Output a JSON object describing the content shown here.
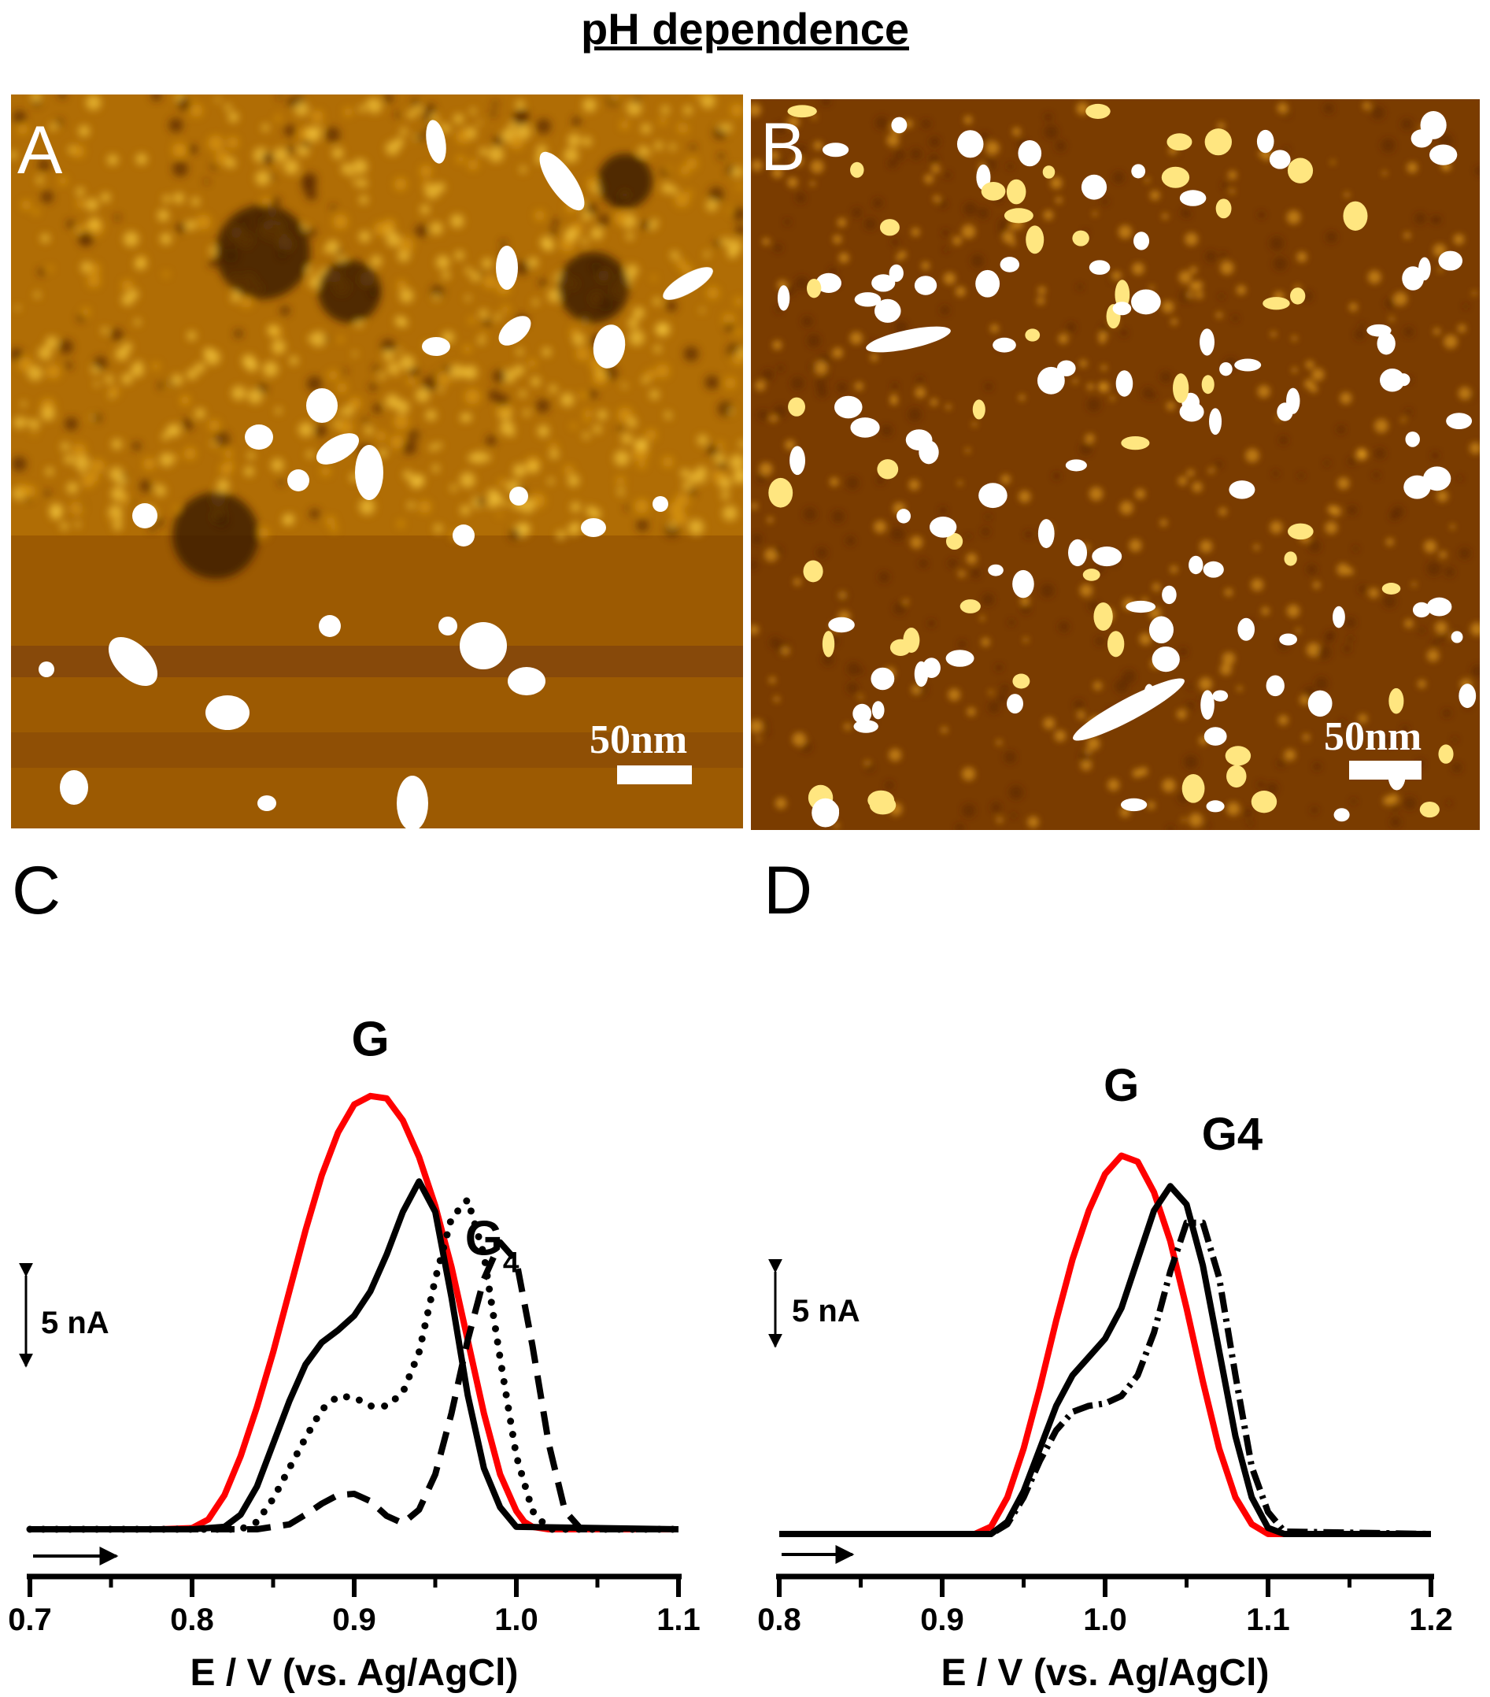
{
  "title": "pH dependence",
  "images": [
    {
      "letter": "A",
      "scale_label": "50nm",
      "icon": "afm-topography-image"
    },
    {
      "letter": "B",
      "scale_label": "50nm",
      "icon": "afm-topography-image"
    }
  ],
  "chart_data": [
    {
      "type": "line",
      "panel": "C",
      "xlabel": "E / V (vs. Ag/AgCl)",
      "ylabel": "",
      "xlim": [
        0.7,
        1.1
      ],
      "ylim": [
        0,
        37
      ],
      "xticks": [
        "0.7",
        "0.8",
        "0.9",
        "1.0",
        "1.1"
      ],
      "scale_bar": "5 nA",
      "scale_bar_value": 5,
      "baseline_arrow": "right",
      "annotations": [
        {
          "text": "G",
          "x": 0.91,
          "y": 38.8
        },
        {
          "text": "G",
          "sub": "4",
          "x": 0.985,
          "y": 22.5
        }
      ],
      "series": [
        {
          "style": "solid",
          "color": "#ff0000",
          "x": [
            0.7,
            0.78,
            0.8,
            0.81,
            0.82,
            0.83,
            0.84,
            0.85,
            0.86,
            0.87,
            0.88,
            0.89,
            0.9,
            0.91,
            0.92,
            0.93,
            0.94,
            0.95,
            0.96,
            0.97,
            0.98,
            0.99,
            1.0,
            1.005,
            1.01,
            1.02,
            1.1
          ],
          "y": [
            0,
            0,
            0.1,
            0.8,
            2.8,
            6.0,
            10.0,
            14.5,
            19.5,
            24.5,
            29.0,
            32.5,
            34.8,
            35.5,
            35.3,
            33.5,
            30.5,
            26.5,
            21.5,
            15.5,
            9.5,
            4.5,
            1.5,
            0.6,
            0.2,
            0,
            0
          ]
        },
        {
          "style": "solid",
          "color": "#000000",
          "x": [
            0.7,
            0.8,
            0.82,
            0.83,
            0.84,
            0.85,
            0.86,
            0.87,
            0.88,
            0.89,
            0.9,
            0.91,
            0.92,
            0.93,
            0.94,
            0.95,
            0.96,
            0.97,
            0.98,
            0.99,
            1.0,
            1.1
          ],
          "y": [
            0,
            0,
            0.2,
            1.2,
            3.5,
            7.0,
            10.5,
            13.5,
            15.3,
            16.3,
            17.5,
            19.5,
            22.5,
            26.0,
            28.5,
            26.0,
            19.0,
            11.0,
            5.0,
            1.8,
            0.2,
            0
          ]
        },
        {
          "style": "dotted",
          "color": "#000000",
          "x": [
            0.7,
            0.83,
            0.84,
            0.85,
            0.86,
            0.87,
            0.88,
            0.89,
            0.9,
            0.91,
            0.92,
            0.93,
            0.94,
            0.95,
            0.96,
            0.97,
            0.98,
            0.99,
            1.0,
            1.01,
            1.02,
            1.1
          ],
          "y": [
            0,
            0,
            0.6,
            2.5,
            5.0,
            7.5,
            9.8,
            10.9,
            10.8,
            10.1,
            10.1,
            11.2,
            14.5,
            20.5,
            25.5,
            27.0,
            22.5,
            14.0,
            6.0,
            1.5,
            0,
            0
          ]
        },
        {
          "style": "dashed",
          "color": "#000000",
          "x": [
            0.7,
            0.84,
            0.86,
            0.87,
            0.88,
            0.89,
            0.9,
            0.91,
            0.92,
            0.93,
            0.94,
            0.95,
            0.96,
            0.97,
            0.98,
            0.99,
            1.0,
            1.01,
            1.02,
            1.03,
            1.04,
            1.1
          ],
          "y": [
            0,
            0,
            0.4,
            1.2,
            2.1,
            2.8,
            2.9,
            2.3,
            1.1,
            0.5,
            1.6,
            4.5,
            9.5,
            15.5,
            20.5,
            23.5,
            22.0,
            15.0,
            7.0,
            1.5,
            0,
            0
          ]
        }
      ]
    },
    {
      "type": "line",
      "panel": "D",
      "xlabel": "E / V (vs. Ag/AgCl)",
      "ylabel": "",
      "xlim": [
        0.8,
        1.2
      ],
      "ylim": [
        0,
        37
      ],
      "xticks": [
        "0.8",
        "0.9",
        "1.0",
        "1.1",
        "1.2"
      ],
      "scale_bar": "5 nA",
      "scale_bar_value": 5,
      "baseline_arrow": "right",
      "annotations": [
        {
          "text": "G",
          "x": 1.01,
          "y": 35.5
        },
        {
          "text": "G4",
          "x": 1.078,
          "y": 31.5
        }
      ],
      "series": [
        {
          "style": "solid",
          "color": "#ff0000",
          "x": [
            0.8,
            0.92,
            0.93,
            0.94,
            0.95,
            0.96,
            0.97,
            0.98,
            0.99,
            1.0,
            1.01,
            1.02,
            1.03,
            1.04,
            1.05,
            1.06,
            1.07,
            1.08,
            1.09,
            1.1,
            1.2
          ],
          "y": [
            0,
            0,
            0.6,
            3.0,
            7.0,
            12.0,
            17.5,
            22.5,
            26.5,
            29.5,
            31.0,
            30.5,
            28.0,
            24.0,
            18.5,
            12.5,
            7.0,
            3.0,
            0.8,
            0,
            0
          ]
        },
        {
          "style": "solid",
          "color": "#000000",
          "x": [
            0.8,
            0.93,
            0.94,
            0.95,
            0.96,
            0.97,
            0.98,
            0.99,
            1.0,
            1.01,
            1.02,
            1.03,
            1.04,
            1.05,
            1.06,
            1.07,
            1.08,
            1.09,
            1.1,
            1.11,
            1.2
          ],
          "y": [
            0,
            0,
            1.0,
            3.5,
            7.0,
            10.5,
            13.0,
            14.5,
            16.0,
            18.5,
            22.5,
            26.5,
            28.5,
            27.0,
            22.0,
            15.0,
            8.0,
            3.0,
            0.5,
            0,
            0
          ]
        },
        {
          "style": "dashdot",
          "color": "#000000",
          "x": [
            0.8,
            0.93,
            0.94,
            0.95,
            0.96,
            0.97,
            0.98,
            0.99,
            1.0,
            1.01,
            1.02,
            1.03,
            1.04,
            1.05,
            1.06,
            1.07,
            1.08,
            1.09,
            1.1,
            1.11,
            1.2
          ],
          "y": [
            0,
            0,
            0.8,
            3.0,
            6.0,
            8.5,
            10.0,
            10.5,
            10.7,
            11.3,
            13.0,
            16.5,
            21.5,
            25.5,
            25.5,
            21.0,
            13.0,
            5.5,
            1.8,
            0.2,
            0
          ]
        }
      ]
    }
  ]
}
